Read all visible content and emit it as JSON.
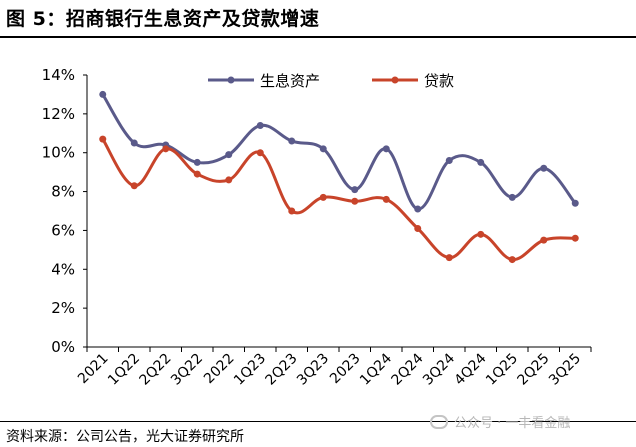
{
  "header": {
    "title": "图 5：招商银行生息资产及贷款增速"
  },
  "footer": {
    "source": "资料来源：公司公告，光大证券研究所"
  },
  "watermark": {
    "text": "公众号 · 一丰看金融"
  },
  "chart_data": {
    "type": "line",
    "categories": [
      "2021",
      "1Q22",
      "2Q22",
      "3Q22",
      "2022",
      "1Q23",
      "2Q23",
      "3Q23",
      "2023",
      "1Q24",
      "2Q24",
      "3Q24",
      "4Q24",
      "1Q25",
      "2Q25",
      "3Q25"
    ],
    "yticks": [
      "0%",
      "2%",
      "4%",
      "6%",
      "8%",
      "10%",
      "12%",
      "14%"
    ],
    "ylim": [
      0,
      14
    ],
    "y_unit": "%",
    "grid": false,
    "legend_position": "top-center",
    "series": [
      {
        "name": "生息资产",
        "color": "#5a5a8a",
        "values": [
          13.0,
          10.5,
          10.4,
          9.5,
          9.9,
          11.4,
          10.6,
          10.2,
          8.1,
          10.2,
          7.1,
          9.6,
          9.5,
          7.7,
          9.2,
          7.4
        ]
      },
      {
        "name": "贷款",
        "color": "#c8442a",
        "values": [
          10.7,
          8.3,
          10.2,
          8.9,
          8.6,
          10.0,
          7.0,
          7.7,
          7.5,
          7.6,
          6.1,
          4.6,
          5.8,
          4.5,
          5.5,
          5.6
        ]
      }
    ]
  }
}
